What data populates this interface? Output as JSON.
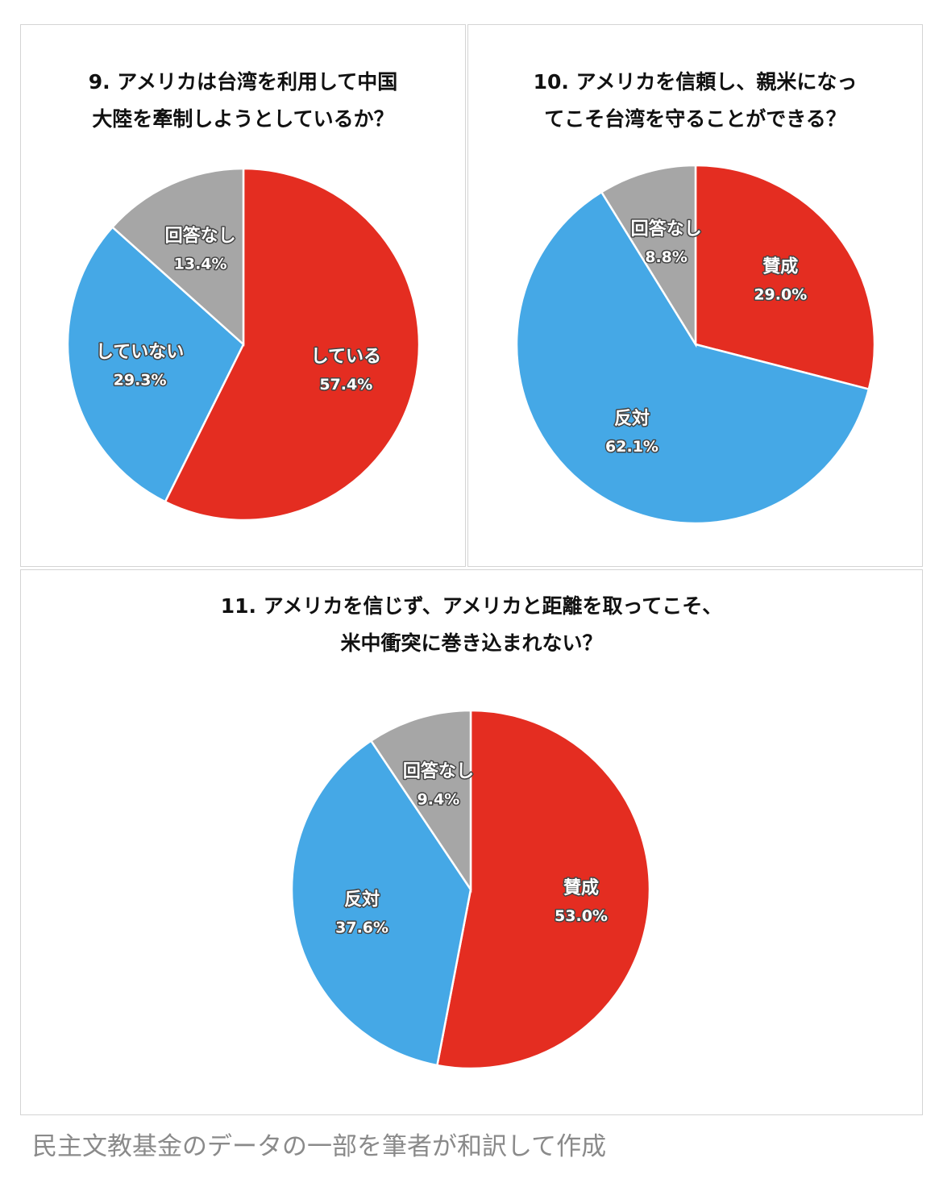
{
  "colors": {
    "yes": "#e42d21",
    "no": "#45a8e6",
    "none": "#a6a6a6"
  },
  "chart_data": [
    {
      "type": "pie",
      "title": [
        "9. アメリカは台湾を利用して中国",
        "大陸を牽制しようとしているか？"
      ],
      "slices": [
        {
          "label": "している",
          "value": 57.4,
          "value_label": "57.4%",
          "color": "yes"
        },
        {
          "label": "していない",
          "value": 29.3,
          "value_label": "29.3%",
          "color": "no"
        },
        {
          "label": "回答なし",
          "value": 13.4,
          "value_label": "13.4%",
          "color": "none"
        }
      ]
    },
    {
      "type": "pie",
      "title": [
        "10. アメリカを信頼し、親米になっ",
        "てこそ台湾を守ることができる？"
      ],
      "slices": [
        {
          "label": "賛成",
          "value": 29.0,
          "value_label": "29.0%",
          "color": "yes"
        },
        {
          "label": "反対",
          "value": 62.1,
          "value_label": "62.1%",
          "color": "no"
        },
        {
          "label": "回答なし",
          "value": 8.8,
          "value_label": "8.8%",
          "color": "none"
        }
      ]
    },
    {
      "type": "pie",
      "title": [
        "11. アメリカを信じず、アメリカと距離を取ってこそ、",
        "米中衝突に巻き込まれない？"
      ],
      "slices": [
        {
          "label": "賛成",
          "value": 53.0,
          "value_label": "53.0%",
          "color": "yes"
        },
        {
          "label": "反対",
          "value": 37.6,
          "value_label": "37.6%",
          "color": "no"
        },
        {
          "label": "回答なし",
          "value": 9.4,
          "value_label": "9.4%",
          "color": "none"
        }
      ]
    }
  ],
  "caption": "民主文教基金のデータの一部を筆者が和訳して作成"
}
